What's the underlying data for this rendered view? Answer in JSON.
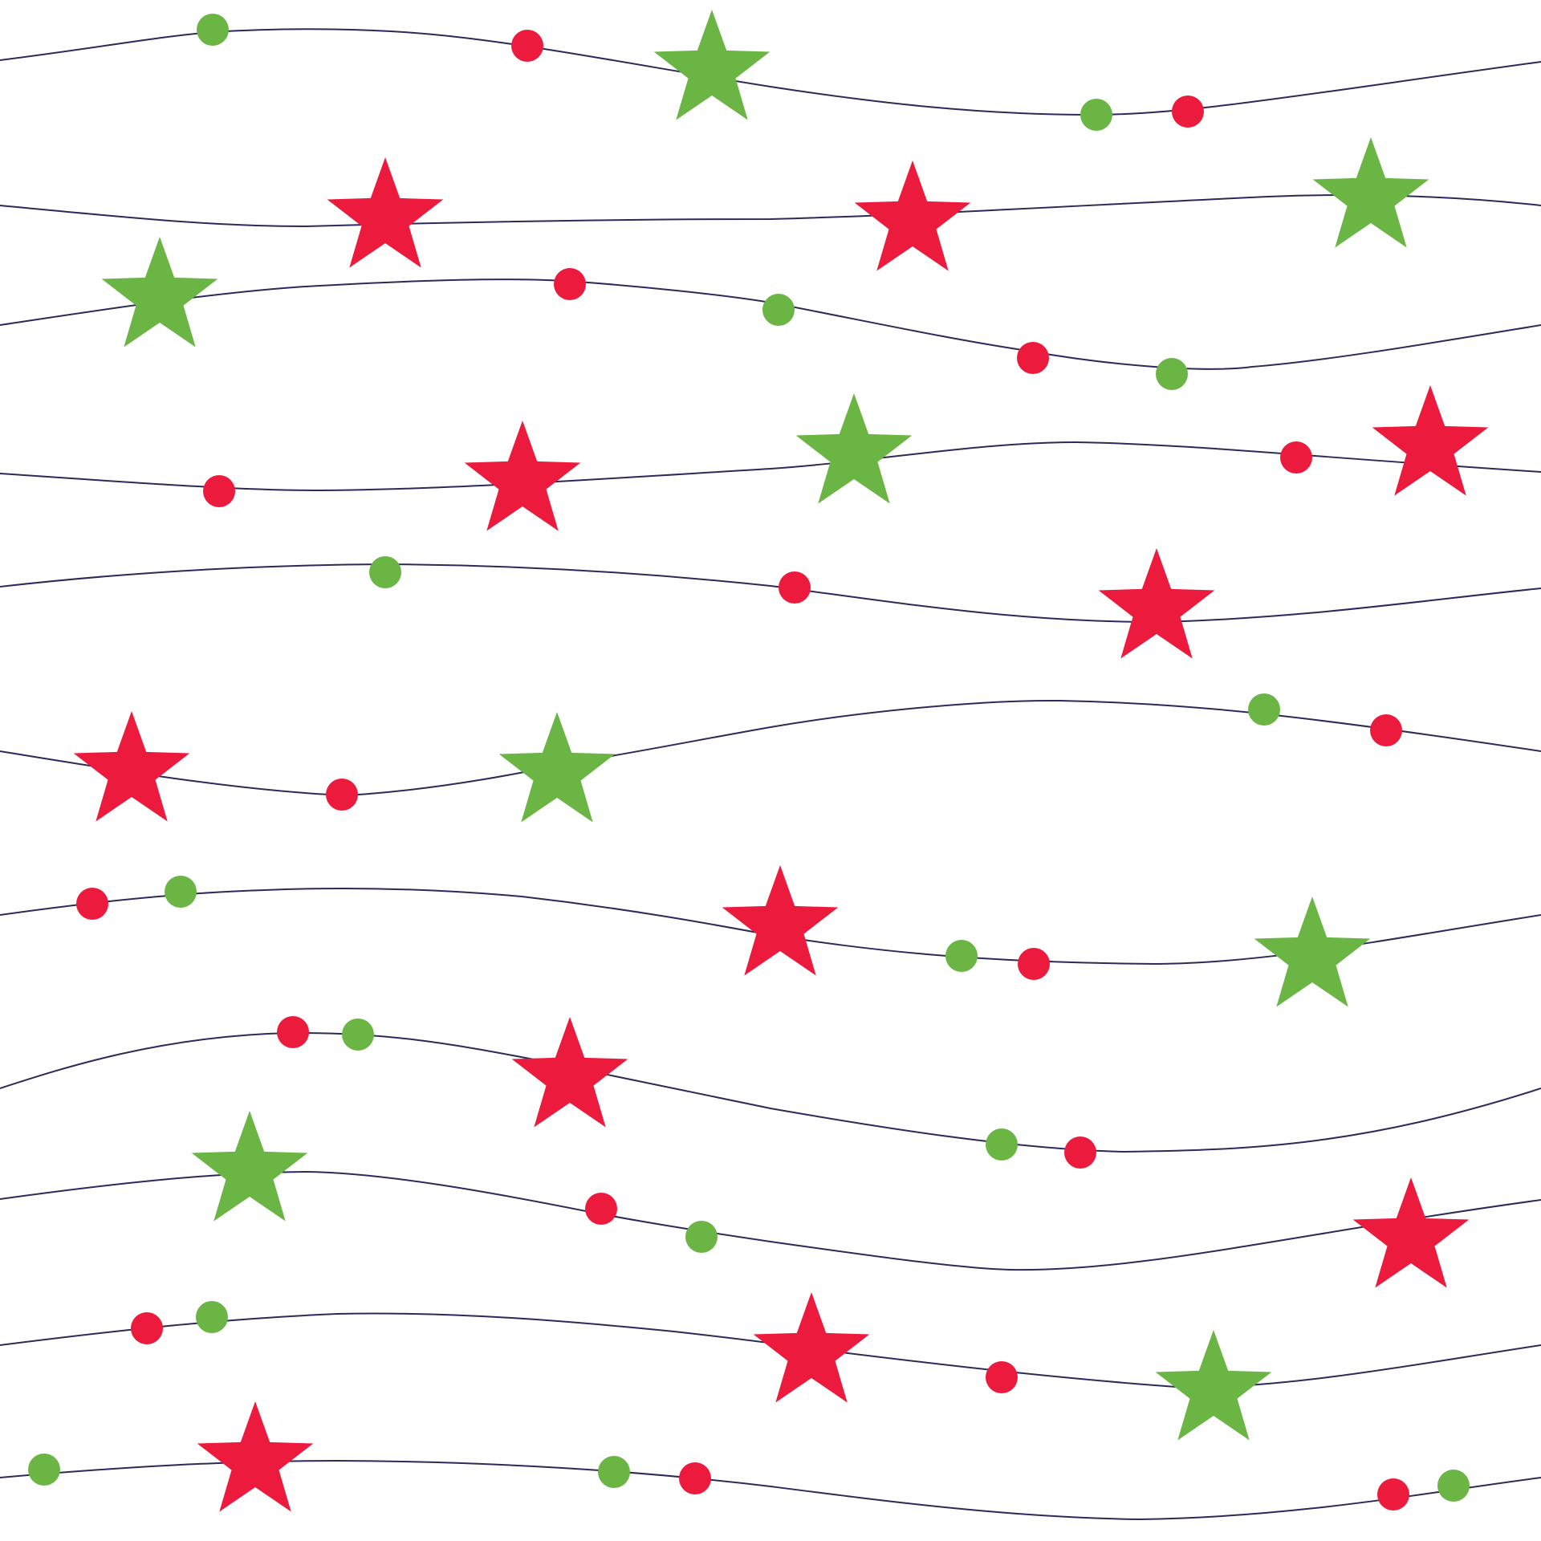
{
  "colors": {
    "background": "#ffffff",
    "string": "#2b2a5a",
    "green": "#6bb545",
    "red": "#ec1a3c"
  },
  "icons": {
    "star": "star-icon",
    "bead": "bead-icon"
  }
}
